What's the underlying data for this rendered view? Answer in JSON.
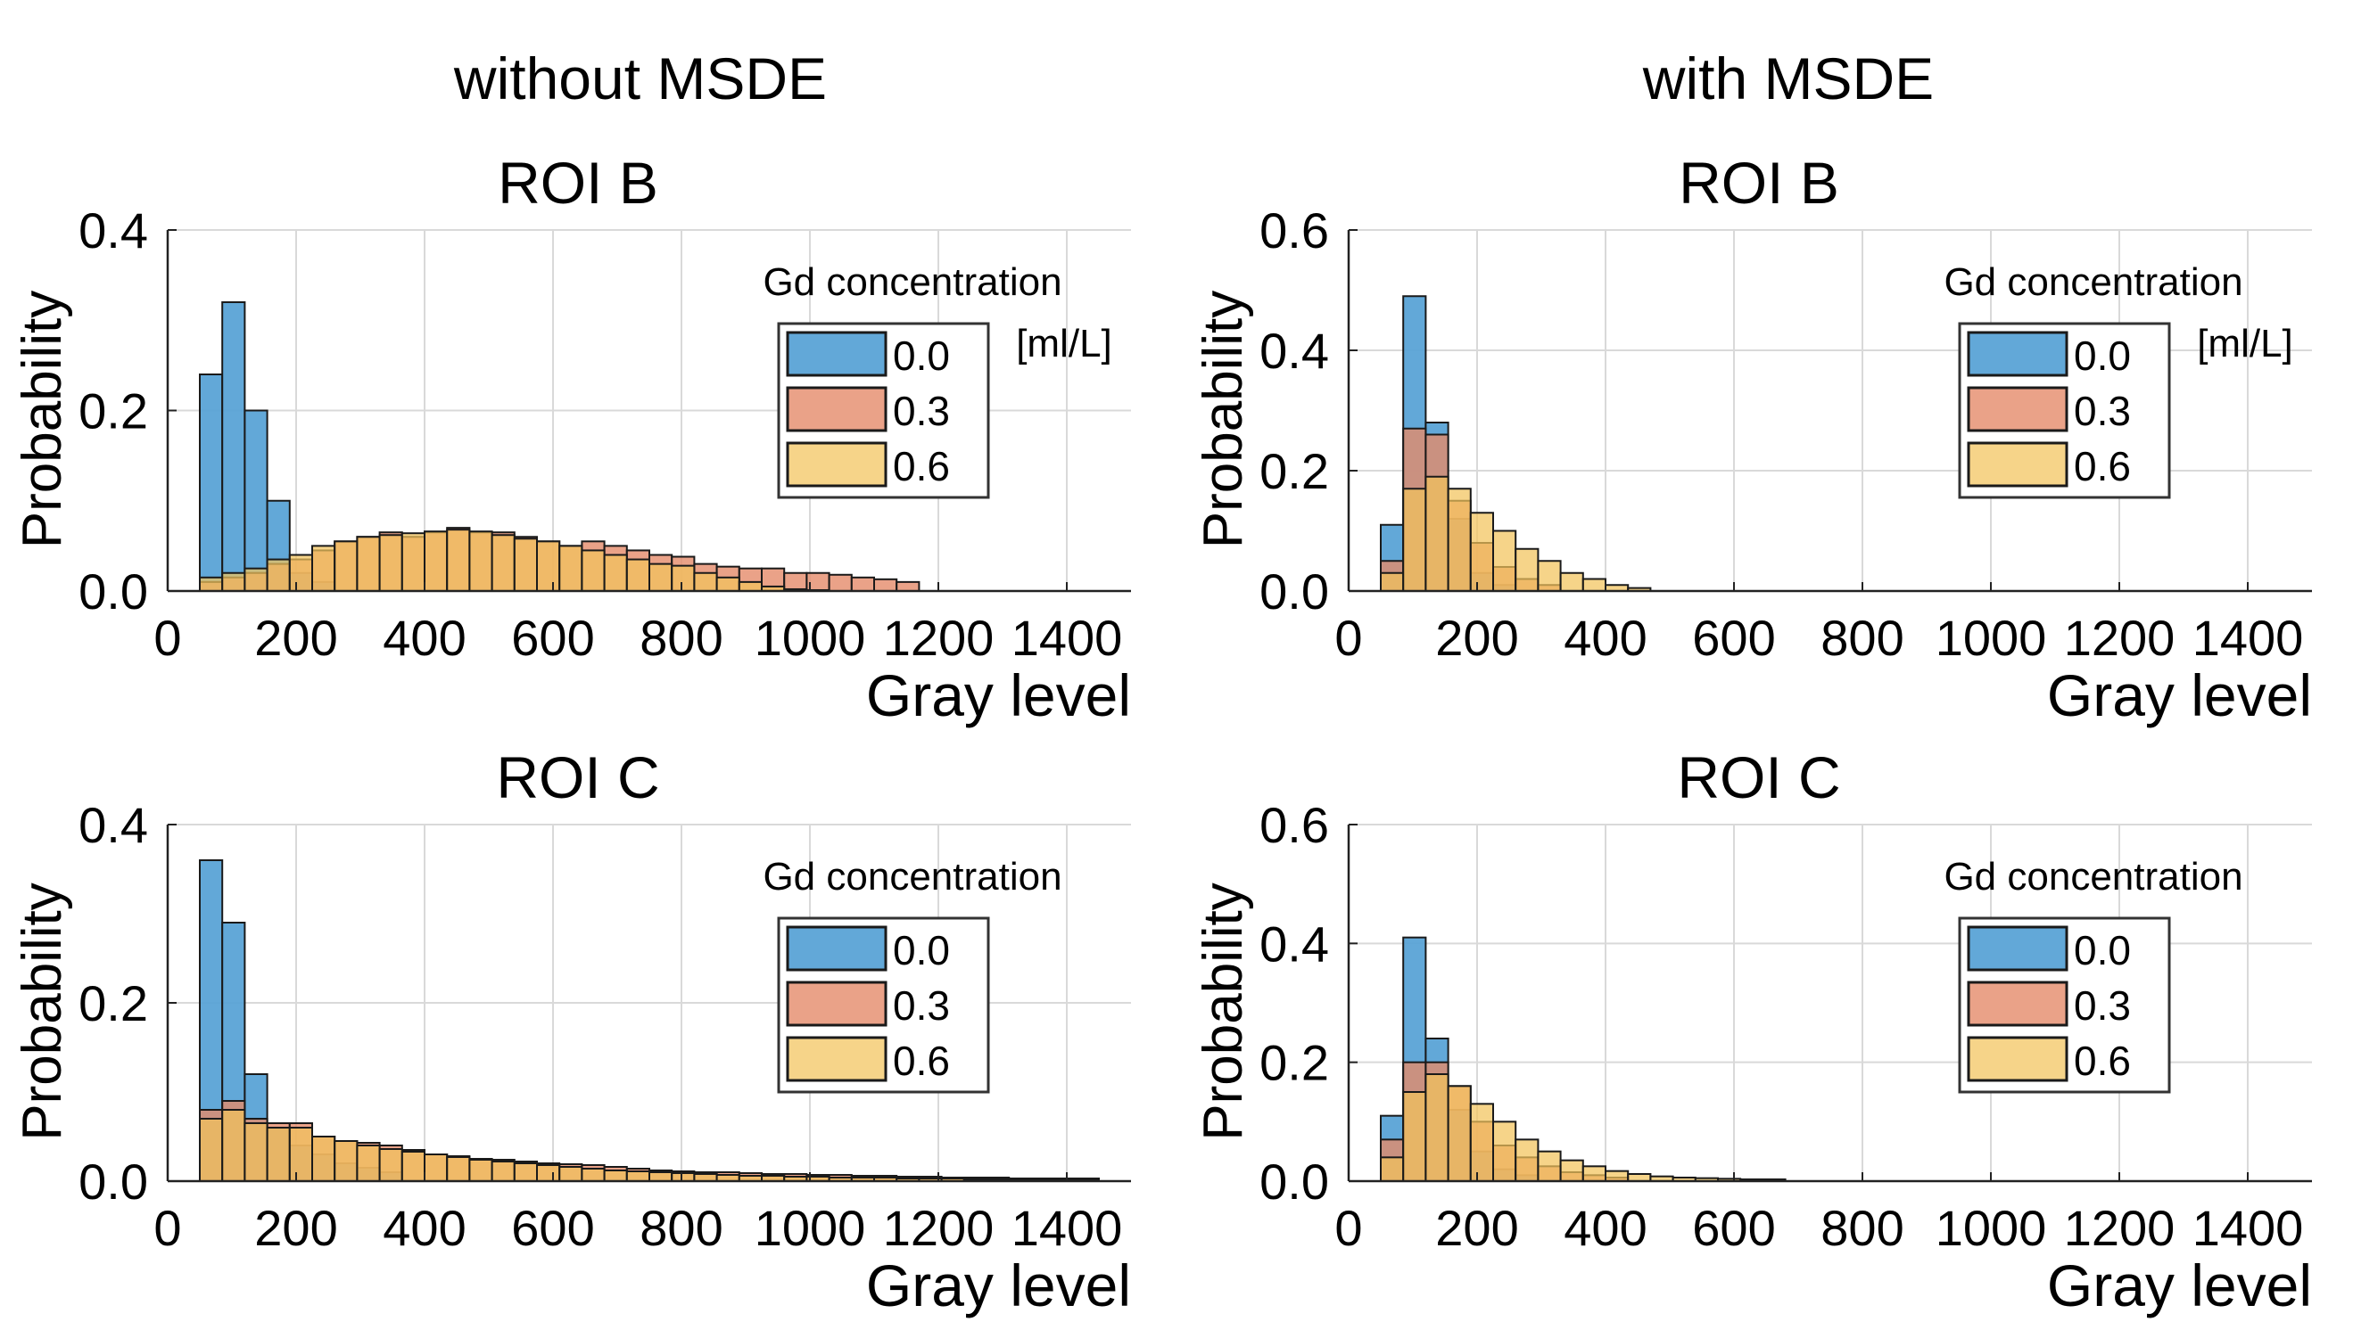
{
  "column_titles": [
    "without MSDE",
    "with MSDE"
  ],
  "legend": {
    "title": "Gd concentration",
    "unit": "[ml/L]",
    "colors": {
      "0.0": "#5aa3d6",
      "0.3": "#e58b6a",
      "0.6": "#f2c45c"
    }
  },
  "chart_data": [
    {
      "type": "histogram",
      "title": "ROI B",
      "column": "without MSDE",
      "xlabel": "Gray level",
      "ylabel": "Probability",
      "xlim": [
        0,
        1500
      ],
      "ylim": [
        0,
        0.4
      ],
      "xticks": [
        "0",
        "200",
        "400",
        "600",
        "800",
        "1000",
        "1200",
        "1400"
      ],
      "yticks": [
        "0.0",
        "0.2",
        "0.4"
      ],
      "bin_start": 50,
      "bin_width": 35,
      "series": [
        {
          "name": "0.0",
          "values": [
            0.24,
            0.32,
            0.2,
            0.1,
            0.02,
            0.01
          ]
        },
        {
          "name": "0.3",
          "values": [
            0.01,
            0.015,
            0.02,
            0.03,
            0.035,
            0.045,
            0.055,
            0.06,
            0.065,
            0.06,
            0.065,
            0.07,
            0.065,
            0.065,
            0.06,
            0.055,
            0.05,
            0.055,
            0.05,
            0.045,
            0.04,
            0.038,
            0.03,
            0.027,
            0.025,
            0.025,
            0.02,
            0.02,
            0.018,
            0.015,
            0.013,
            0.01
          ]
        },
        {
          "name": "0.6",
          "values": [
            0.015,
            0.02,
            0.025,
            0.035,
            0.04,
            0.05,
            0.055,
            0.06,
            0.062,
            0.064,
            0.066,
            0.068,
            0.066,
            0.062,
            0.058,
            0.055,
            0.05,
            0.045,
            0.04,
            0.035,
            0.03,
            0.028,
            0.02,
            0.015,
            0.01,
            0.005,
            0.002,
            0.001
          ]
        }
      ],
      "show_unit": true,
      "legend_labels": [
        "0.0",
        "0.3",
        "0.6"
      ]
    },
    {
      "type": "histogram",
      "title": "ROI B",
      "column": "with MSDE",
      "xlabel": "Gray level",
      "ylabel": "Probability",
      "xlim": [
        0,
        1500
      ],
      "ylim": [
        0,
        0.6
      ],
      "xticks": [
        "0",
        "200",
        "400",
        "600",
        "800",
        "1000",
        "1200",
        "1400"
      ],
      "yticks": [
        "0.0",
        "0.2",
        "0.4",
        "0.6"
      ],
      "bin_start": 50,
      "bin_width": 35,
      "series": [
        {
          "name": "0.0",
          "values": [
            0.11,
            0.49,
            0.28,
            0.12,
            0.03,
            0.01
          ]
        },
        {
          "name": "0.3",
          "values": [
            0.05,
            0.27,
            0.26,
            0.15,
            0.08,
            0.04,
            0.02,
            0.01
          ]
        },
        {
          "name": "0.6",
          "values": [
            0.03,
            0.17,
            0.19,
            0.17,
            0.13,
            0.1,
            0.07,
            0.05,
            0.03,
            0.02,
            0.01,
            0.005
          ]
        }
      ],
      "show_unit": true,
      "legend_labels": [
        "0.0",
        "0.3",
        "0.6"
      ]
    },
    {
      "type": "histogram",
      "title": "ROI C",
      "column": "without MSDE",
      "xlabel": "Gray level",
      "ylabel": "Probability",
      "xlim": [
        0,
        1500
      ],
      "ylim": [
        0,
        0.4
      ],
      "xticks": [
        "0",
        "200",
        "400",
        "600",
        "800",
        "1000",
        "1200",
        "1400"
      ],
      "yticks": [
        "0.0",
        "0.2",
        "0.4"
      ],
      "bin_start": 50,
      "bin_width": 35,
      "series": [
        {
          "name": "0.0",
          "values": [
            0.36,
            0.29,
            0.12,
            0.06,
            0.04,
            0.03,
            0.02,
            0.015,
            0.01
          ]
        },
        {
          "name": "0.3",
          "values": [
            0.08,
            0.09,
            0.07,
            0.065,
            0.065,
            0.05,
            0.045,
            0.043,
            0.04,
            0.035,
            0.03,
            0.028,
            0.025,
            0.024,
            0.022,
            0.02,
            0.019,
            0.018,
            0.016,
            0.014,
            0.012,
            0.011,
            0.01,
            0.01,
            0.009,
            0.008,
            0.008,
            0.007,
            0.007,
            0.006,
            0.006,
            0.005,
            0.005,
            0.004,
            0.004,
            0.004,
            0.003,
            0.003,
            0.003,
            0.003
          ]
        },
        {
          "name": "0.6",
          "values": [
            0.07,
            0.08,
            0.065,
            0.06,
            0.06,
            0.05,
            0.045,
            0.04,
            0.036,
            0.033,
            0.03,
            0.027,
            0.024,
            0.022,
            0.02,
            0.018,
            0.016,
            0.014,
            0.012,
            0.011,
            0.01,
            0.009,
            0.008,
            0.007,
            0.006,
            0.006,
            0.005,
            0.005,
            0.004,
            0.004,
            0.004,
            0.003,
            0.003,
            0.003,
            0.002,
            0.002,
            0.002,
            0.002,
            0.002,
            0.002
          ]
        }
      ],
      "show_unit": false,
      "legend_labels": [
        "0.0",
        "0.3",
        "0.6"
      ]
    },
    {
      "type": "histogram",
      "title": "ROI C",
      "column": "with MSDE",
      "xlabel": "Gray level",
      "ylabel": "Probability",
      "xlim": [
        0,
        1500
      ],
      "ylim": [
        0,
        0.6
      ],
      "xticks": [
        "0",
        "200",
        "400",
        "600",
        "800",
        "1000",
        "1200",
        "1400"
      ],
      "yticks": [
        "0.0",
        "0.2",
        "0.4",
        "0.6"
      ],
      "bin_start": 50,
      "bin_width": 35,
      "series": [
        {
          "name": "0.0",
          "values": [
            0.11,
            0.41,
            0.24,
            0.12,
            0.05,
            0.02,
            0.01
          ]
        },
        {
          "name": "0.3",
          "values": [
            0.07,
            0.2,
            0.2,
            0.16,
            0.1,
            0.06,
            0.04,
            0.025,
            0.015,
            0.01,
            0.006
          ]
        },
        {
          "name": "0.6",
          "values": [
            0.04,
            0.15,
            0.18,
            0.16,
            0.13,
            0.1,
            0.07,
            0.05,
            0.035,
            0.025,
            0.017,
            0.012,
            0.008,
            0.006,
            0.005,
            0.004,
            0.003,
            0.003
          ]
        }
      ],
      "show_unit": false,
      "legend_labels": [
        "0.0",
        "0.3",
        "0.6"
      ]
    }
  ]
}
